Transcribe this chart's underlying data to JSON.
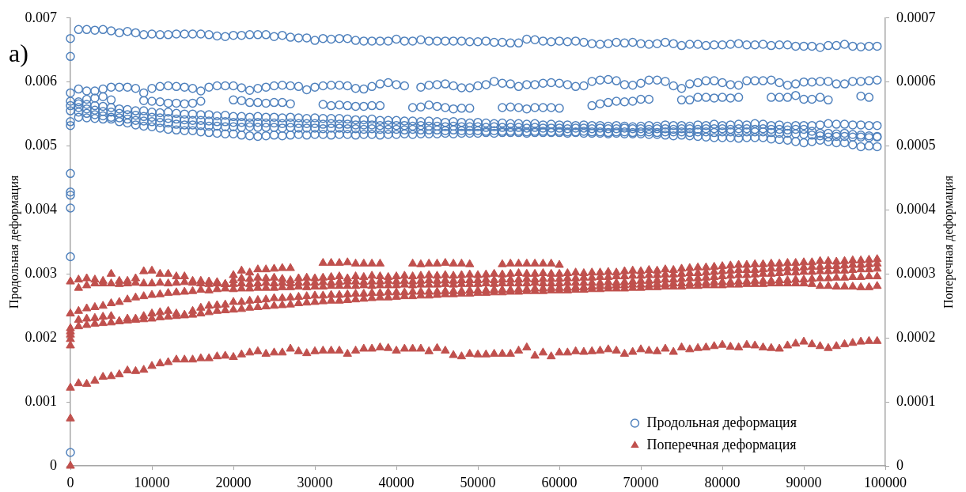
{
  "chart_data": {
    "type": "scatter",
    "ylabel": "Продольная деформация",
    "y2label": "Поперечная деформация",
    "annotations": [
      "a)"
    ],
    "x": [
      0,
      1000,
      2000,
      3000,
      4000,
      5000,
      6000,
      7000,
      8000,
      9000,
      10000,
      11000,
      12000,
      13000,
      14000,
      15000,
      16000,
      17000,
      18000,
      19000,
      20000,
      21000,
      22000,
      23000,
      24000,
      25000,
      26000,
      27000,
      28000,
      29000,
      30000,
      31000,
      32000,
      33000,
      34000,
      35000,
      36000,
      37000,
      38000,
      39000,
      40000,
      41000,
      42000,
      43000,
      44000,
      45000,
      46000,
      47000,
      48000,
      49000,
      50000,
      51000,
      52000,
      53000,
      54000,
      55000,
      56000,
      57000,
      58000,
      59000,
      60000,
      61000,
      62000,
      63000,
      64000,
      65000,
      66000,
      67000,
      68000,
      69000,
      70000,
      71000,
      72000,
      73000,
      74000,
      75000,
      76000,
      77000,
      78000,
      79000,
      80000,
      81000,
      82000,
      83000,
      84000,
      85000,
      86000,
      87000,
      88000,
      89000,
      90000,
      91000,
      92000,
      93000,
      94000,
      95000,
      96000,
      97000,
      98000,
      99000
    ],
    "xlim": [
      0,
      100000
    ],
    "xticks": [
      0,
      10000,
      20000,
      30000,
      40000,
      50000,
      60000,
      70000,
      80000,
      90000,
      100000
    ],
    "ylim": [
      0,
      0.007
    ],
    "yticks": [
      0,
      0.001,
      0.002,
      0.003,
      0.004,
      0.005,
      0.006,
      0.007
    ],
    "y2lim": [
      0,
      0.0007
    ],
    "y2ticks": [
      0,
      0.0001,
      0.0002,
      0.0003,
      0.0004,
      0.0005,
      0.0006,
      0.0007
    ],
    "grid": false,
    "legend": "bottom right",
    "series": [
      {
        "name": "Продольная деформация",
        "color": "#4f81bd",
        "marker": "circle",
        "x": [
          0,
          0,
          0,
          0,
          0,
          0,
          0,
          0,
          0,
          1000,
          2000,
          3000,
          4000,
          5000,
          6000,
          7000,
          8000,
          9000,
          10000,
          11000,
          12000,
          13000,
          14000,
          15000,
          16000,
          17000,
          18000,
          19000,
          20000,
          21000,
          22000,
          23000,
          24000,
          25000,
          26000,
          27000,
          28000,
          29000,
          30000,
          31000,
          32000,
          33000,
          34000,
          35000,
          36000,
          37000,
          38000,
          39000,
          40000,
          41000,
          42000,
          43000,
          44000,
          45000,
          46000,
          47000,
          48000,
          49000,
          50000,
          51000,
          52000,
          53000,
          54000,
          55000,
          56000,
          57000,
          58000,
          59000,
          60000,
          61000,
          62000,
          63000,
          64000,
          65000,
          66000,
          67000,
          68000,
          69000,
          70000,
          71000,
          72000,
          73000,
          74000,
          75000,
          76000,
          77000,
          78000,
          79000,
          80000,
          81000,
          82000,
          83000,
          84000,
          85000,
          86000,
          87000,
          88000,
          89000,
          90000,
          91000,
          92000,
          93000,
          94000,
          95000,
          96000,
          97000,
          98000,
          99000
        ],
        "values": [
          0.00021,
          0.00327,
          0.00403,
          0.00423,
          0.00428,
          0.00457,
          0.00532,
          0.0064,
          0.00668,
          0.00682,
          0.00682,
          0.00681,
          0.00682,
          0.0068,
          0.00677,
          0.00679,
          0.00677,
          0.00674,
          0.00675,
          0.00674,
          0.00674,
          0.00675,
          0.00675,
          0.00675,
          0.00675,
          0.00674,
          0.00672,
          0.00671,
          0.00673,
          0.00673,
          0.00674,
          0.00674,
          0.00674,
          0.00671,
          0.00673,
          0.0067,
          0.00669,
          0.00669,
          0.00665,
          0.00668,
          0.00667,
          0.00668,
          0.00668,
          0.00665,
          0.00664,
          0.00664,
          0.00664,
          0.00664,
          0.00667,
          0.00664,
          0.00664,
          0.00666,
          0.00664,
          0.00664,
          0.00664,
          0.00664,
          0.00664,
          0.00663,
          0.00663,
          0.00664,
          0.00662,
          0.00662,
          0.00661,
          0.00661,
          0.00667,
          0.00666,
          0.00664,
          0.00663,
          0.00664,
          0.00663,
          0.00664,
          0.00662,
          0.0066,
          0.00659,
          0.0066,
          0.00662,
          0.00661,
          0.00662,
          0.0066,
          0.00659,
          0.0066,
          0.00662,
          0.0066,
          0.00657,
          0.00659,
          0.00659,
          0.00657,
          0.00658,
          0.00658,
          0.00659,
          0.0066,
          0.00658,
          0.00658,
          0.00659,
          0.00657,
          0.00658,
          0.00658,
          0.00656,
          0.00656,
          0.00656,
          0.00654,
          0.00657,
          0.00657,
          0.00659,
          0.00656,
          0.00655,
          0.00656,
          0.00656
        ]
      },
      {
        "color": "#4f81bd",
        "marker": "circle",
        "values": [
          0.00583,
          0.00589,
          0.00586,
          0.00586,
          0.00589,
          0.00592,
          0.00592,
          0.00592,
          0.0059,
          0.00583,
          0.0059,
          0.00593,
          0.00594,
          0.00593,
          0.00592,
          0.0059,
          0.00586,
          0.00592,
          0.00594,
          0.00594,
          0.00594,
          0.00591,
          0.00587,
          0.0059,
          0.00592,
          0.00594,
          0.00595,
          0.00594,
          0.00593,
          0.00588,
          0.00592,
          0.00594,
          0.00595,
          0.00595,
          0.00594,
          0.0059,
          0.00589,
          0.00593,
          0.00597,
          0.00599,
          0.00596,
          0.00594,
          null,
          0.00592,
          0.00595,
          0.00596,
          0.00597,
          0.00594,
          0.00591,
          0.00591,
          0.00594,
          0.00596,
          0.00601,
          0.00598,
          0.00597,
          0.00593,
          0.00596,
          0.00596,
          0.00598,
          0.00599,
          0.00598,
          0.00596,
          0.00593,
          0.00594,
          0.00601,
          0.00603,
          0.00604,
          0.00602,
          0.00596,
          0.00595,
          0.00598,
          0.00603,
          0.00603,
          0.00601,
          0.00594,
          0.0059,
          0.00597,
          0.00599,
          0.00602,
          0.00602,
          0.00599,
          0.00596,
          0.00595,
          0.00602,
          0.00602,
          0.00602,
          0.00603,
          0.00599,
          0.00595,
          0.00597,
          0.006,
          0.006,
          0.00601,
          0.00601,
          0.00597,
          0.00597,
          0.00601,
          0.00601,
          0.00602,
          0.00603
        ]
      },
      {
        "color": "#4f81bd",
        "marker": "circle",
        "values": [
          null,
          0.00569,
          0.00573,
          0.00575,
          0.00577,
          0.00572,
          null,
          null,
          null,
          0.00571,
          0.0057,
          0.00569,
          0.00567,
          0.00567,
          0.00566,
          0.00567,
          0.0057,
          null,
          null,
          null,
          0.00572,
          0.00571,
          0.00568,
          0.00568,
          0.00567,
          0.00568,
          0.00568,
          0.00566,
          null,
          null,
          null,
          0.00565,
          0.00563,
          0.00564,
          0.00563,
          0.00562,
          0.00562,
          0.00563,
          0.00563,
          null,
          null,
          null,
          0.0056,
          0.00561,
          0.00564,
          0.00562,
          0.0056,
          0.00558,
          0.00559,
          0.00559,
          null,
          null,
          null,
          0.0056,
          0.00561,
          0.0056,
          0.00558,
          0.0056,
          0.0056,
          0.0056,
          0.00559,
          null,
          null,
          null,
          0.00563,
          0.00566,
          0.00568,
          0.0057,
          0.00569,
          0.0057,
          0.00573,
          0.00573,
          null,
          null,
          null,
          0.00572,
          0.00572,
          0.00576,
          0.00576,
          0.00575,
          0.00576,
          0.00575,
          0.00576,
          null,
          null,
          null,
          0.00576,
          0.00576,
          0.00576,
          0.00579,
          0.00573,
          0.00573,
          0.00576,
          0.00572,
          null,
          null,
          null,
          0.00578,
          0.00576,
          null
        ]
      },
      {
        "color": "#4f81bd",
        "marker": "circle",
        "values": [
          0.0057,
          0.00566,
          0.00565,
          0.00563,
          0.00562,
          0.0056,
          0.00558,
          0.00557,
          0.00555,
          0.00555,
          0.00553,
          0.00552,
          0.00553,
          0.00551,
          0.0055,
          0.0055,
          0.00549,
          0.00549,
          0.00547,
          0.00548,
          0.00546,
          0.00546,
          0.00545,
          0.00546,
          0.00545,
          0.00545,
          0.00544,
          0.00545,
          0.00544,
          0.00543,
          0.00544,
          0.00543,
          0.00543,
          0.00543,
          0.00542,
          0.00541,
          0.00541,
          0.00542,
          0.0054,
          0.0054,
          0.0054,
          0.00539,
          0.00539,
          0.00538,
          0.00539,
          0.00538,
          0.00537,
          0.00538,
          0.00537,
          0.00536,
          0.00537,
          0.00536,
          0.00535,
          0.00536,
          0.00535,
          0.00535,
          0.00534,
          0.00535,
          0.00533,
          0.00534,
          0.00533,
          0.00533,
          0.00532,
          0.00533,
          0.00532,
          0.00532,
          0.00531,
          0.00532,
          0.00531,
          0.0053,
          0.00531,
          0.00532,
          0.00531,
          0.00533,
          0.00532,
          0.00532,
          0.00531,
          0.00533,
          0.00532,
          0.00534,
          0.00532,
          0.00533,
          0.00534,
          0.00533,
          0.00535,
          0.00534,
          0.00532,
          0.00533,
          0.00531,
          0.00532,
          0.00532,
          0.00532,
          0.00533,
          0.00535,
          0.00534,
          0.00534,
          0.00533,
          0.00533,
          0.00532,
          0.00532
        ]
      },
      {
        "color": "#4f81bd",
        "marker": "circle",
        "values": [
          0.00563,
          0.0056,
          0.00558,
          0.00556,
          0.00554,
          0.00553,
          0.00551,
          0.00549,
          0.00548,
          0.00546,
          0.00545,
          0.00544,
          0.00543,
          0.00542,
          0.00541,
          0.0054,
          0.0054,
          0.00539,
          0.00538,
          0.00538,
          0.00537,
          0.00537,
          0.00536,
          0.00537,
          0.00536,
          0.00536,
          0.00535,
          0.00536,
          0.00535,
          0.00535,
          0.00535,
          0.00534,
          0.00535,
          0.00534,
          0.00534,
          0.00533,
          0.00533,
          0.00533,
          0.00532,
          0.00533,
          0.00532,
          0.00532,
          0.00531,
          0.00532,
          0.00531,
          0.00531,
          0.0053,
          0.00531,
          0.0053,
          0.0053,
          0.0053,
          0.00529,
          0.0053,
          0.00529,
          0.00529,
          0.00529,
          0.00528,
          0.00529,
          0.00528,
          0.00528,
          0.00528,
          0.00527,
          0.00528,
          0.00528,
          0.00527,
          0.00528,
          0.00527,
          0.00527,
          0.00528,
          0.00527,
          0.00527,
          0.00526,
          0.00527,
          0.00527,
          0.00526,
          0.00527,
          0.00527,
          0.00526,
          0.00527,
          0.00527,
          0.00527,
          0.00526,
          0.00527,
          0.00527,
          0.00526,
          0.00527,
          0.00526,
          0.00526,
          0.00525,
          0.00526,
          0.00526,
          0.00523,
          0.0052,
          0.0052,
          0.00519,
          0.0052,
          0.00518,
          0.00517,
          0.00516,
          0.00515
        ]
      },
      {
        "color": "#4f81bd",
        "marker": "circle",
        "values": [
          0.00555,
          0.00553,
          0.00551,
          0.00549,
          0.00547,
          0.00545,
          0.00544,
          0.00542,
          0.0054,
          0.00539,
          0.00538,
          0.00537,
          0.00536,
          0.00534,
          0.00533,
          0.00533,
          0.00532,
          0.00531,
          0.00531,
          0.0053,
          0.0053,
          0.00529,
          0.0053,
          0.00529,
          0.00529,
          0.00529,
          0.00528,
          0.00529,
          0.00528,
          0.00528,
          0.00528,
          0.00527,
          0.00528,
          0.00528,
          0.00527,
          0.00527,
          0.00526,
          0.00527,
          0.00526,
          0.00526,
          0.00526,
          0.00525,
          0.00526,
          0.00525,
          0.00525,
          0.00525,
          0.00524,
          0.00525,
          0.00524,
          0.00524,
          0.00524,
          0.00523,
          0.00524,
          0.00523,
          0.00523,
          0.00523,
          0.00522,
          0.00523,
          0.00523,
          0.00522,
          0.00523,
          0.00522,
          0.00522,
          0.00523,
          0.00522,
          0.00522,
          0.00521,
          0.00522,
          0.00522,
          0.00521,
          0.00522,
          0.00522,
          0.00521,
          0.00522,
          0.00522,
          0.00522,
          0.00521,
          0.00522,
          0.00522,
          0.00521,
          0.00522,
          0.00522,
          0.00521,
          0.00522,
          0.00522,
          0.00522,
          0.00521,
          0.0052,
          0.0052,
          0.00519,
          0.00518,
          0.00517,
          0.00516,
          0.00514,
          0.00515,
          0.00515,
          0.00514,
          0.00514,
          0.00513,
          0.00514
        ]
      },
      {
        "color": "#4f81bd",
        "marker": "circle",
        "values": [
          0.00538,
          0.00545,
          0.00544,
          0.00543,
          0.00542,
          0.00542,
          0.00538,
          0.00536,
          0.00533,
          0.00531,
          0.0053,
          0.00528,
          0.00526,
          0.00525,
          0.00524,
          0.00524,
          0.00522,
          0.00521,
          0.0052,
          0.00519,
          0.00519,
          0.00517,
          0.00516,
          0.00515,
          0.00516,
          0.00517,
          0.00516,
          0.00517,
          0.00518,
          0.00517,
          0.00518,
          0.00518,
          0.00517,
          0.00518,
          0.00518,
          0.00517,
          0.00518,
          0.00518,
          0.00517,
          0.00518,
          0.00518,
          0.00519,
          0.00518,
          0.00519,
          0.00519,
          0.00519,
          0.0052,
          0.00519,
          0.0052,
          0.0052,
          0.0052,
          0.00521,
          0.0052,
          0.00521,
          0.00521,
          0.00521,
          0.0052,
          0.00521,
          0.00521,
          0.00521,
          0.00521,
          0.0052,
          0.00521,
          0.0052,
          0.0052,
          0.0052,
          0.00519,
          0.0052,
          0.00519,
          0.00519,
          0.00519,
          0.00518,
          0.00518,
          0.00517,
          0.00516,
          0.00517,
          0.00516,
          0.00515,
          0.00514,
          0.00513,
          0.00513,
          0.00513,
          0.00512,
          0.00513,
          0.00513,
          0.00513,
          0.00511,
          0.0051,
          0.00509,
          0.00507,
          0.00505,
          0.00507,
          0.00509,
          0.00507,
          0.00505,
          0.00505,
          0.00502,
          0.00499,
          0.005,
          0.00499
        ]
      },
      {
        "name": "Поперечная деформация",
        "color": "#c0504d",
        "marker": "triangle",
        "axis": "y2",
        "x": [
          0,
          0,
          0,
          0,
          0,
          0,
          0,
          0,
          1000,
          2000,
          3000,
          4000,
          5000,
          6000,
          7000,
          8000,
          9000,
          10000,
          11000,
          12000,
          13000,
          14000,
          15000,
          16000,
          17000,
          18000,
          19000,
          20000,
          21000,
          22000,
          23000,
          24000,
          25000,
          26000,
          27000,
          28000,
          29000,
          30000,
          31000,
          32000,
          33000,
          34000,
          35000,
          36000,
          37000,
          38000,
          39000,
          40000,
          41000,
          42000,
          43000,
          44000,
          45000,
          46000,
          47000,
          48000,
          49000,
          50000,
          51000,
          52000,
          53000,
          54000,
          55000,
          56000,
          57000,
          58000,
          59000,
          60000,
          61000,
          62000,
          63000,
          64000,
          65000,
          66000,
          67000,
          68000,
          69000,
          70000,
          71000,
          72000,
          73000,
          74000,
          75000,
          76000,
          77000,
          78000,
          79000,
          80000,
          81000,
          82000,
          83000,
          84000,
          85000,
          86000,
          87000,
          88000,
          89000,
          90000,
          91000,
          92000,
          93000,
          94000,
          95000,
          96000,
          97000,
          98000,
          99000
        ],
        "values": [
          0,
          7.4e-05,
          0.000188,
          0.000198,
          0.000205,
          0.00021,
          0.000215,
          0.000288,
          0.000291,
          0.000293,
          0.000291,
          0.000289,
          0.0003,
          0.000289,
          0.000289,
          0.000293,
          0.000304,
          0.000305,
          0.0003,
          0.0003,
          0.000296,
          0.000296,
          0.000289,
          0.000289,
          0.000288,
          0.000287,
          0.000284,
          0.00029,
          0.000293,
          0.000292,
          0.000294,
          0.000293,
          0.000294,
          0.000292,
          0.00029,
          0.000293,
          0.000294,
          0.000293,
          0.000294,
          0.000295,
          0.000296,
          0.000293,
          0.000296,
          0.000295,
          0.000297,
          0.000296,
          0.000295,
          0.000296,
          0.000297,
          0.000296,
          0.000297,
          0.000298,
          0.000297,
          0.000298,
          0.000297,
          0.000298,
          0.000299,
          0.000298,
          0.000299,
          0.0003,
          0.000299,
          0.0003,
          0.000301,
          0.0003,
          0.0003,
          0.000301,
          0.0003,
          0.0003,
          0.000301,
          0.000302,
          0.000301,
          0.000302,
          0.000302,
          0.000303,
          0.000302,
          0.000304,
          0.000305,
          0.000304,
          0.000306,
          0.000305,
          0.000307,
          0.000306,
          0.000308,
          0.000309,
          0.00031,
          0.00031,
          0.000311,
          0.000312,
          0.000313,
          0.000314,
          0.000314,
          0.000315,
          0.000315,
          0.000316,
          0.000316,
          0.000317,
          0.000317,
          0.000318,
          0.000318,
          0.00032,
          0.00032,
          0.000319,
          0.00032,
          0.000321,
          0.000321,
          0.000322,
          0.000323
        ]
      },
      {
        "color": "#c0504d",
        "marker": "triangle",
        "axis": "y2",
        "values": [
          null,
          0.000278,
          0.000282,
          0.000285,
          0.000285,
          0.000285,
          0.000284,
          0.000285,
          0.000286,
          0.000285,
          0.000285,
          0.000286,
          0.000285,
          0.000286,
          0.000287,
          0.000286,
          0.000285,
          0.000284,
          0.000285,
          0.000284,
          0.000284,
          0.000285,
          0.000284,
          0.000285,
          0.000286,
          0.000285,
          0.000286,
          0.000285,
          0.000286,
          0.000286,
          0.000286,
          0.000287,
          0.000286,
          0.000287,
          0.000288,
          0.000288,
          0.000287,
          0.000288,
          0.000288,
          0.000289,
          0.000288,
          0.000289,
          0.000288,
          0.000289,
          0.00029,
          0.000289,
          0.00029,
          0.000289,
          0.00029,
          0.00029,
          0.00029,
          0.000291,
          0.00029,
          0.000291,
          0.000291,
          0.000291,
          0.000292,
          0.000291,
          0.000292,
          0.000292,
          0.000292,
          0.000293,
          0.000293,
          0.000294,
          0.000294,
          0.000295,
          0.000295,
          0.000296,
          0.000296,
          0.000297,
          0.000297,
          0.000298,
          0.000298,
          0.000299,
          0.000299,
          0.0003,
          0.000301,
          0.000301,
          0.000302,
          0.000303,
          0.000304,
          0.000305,
          0.000306,
          0.000306,
          0.000306,
          0.000307,
          0.000308,
          0.000308,
          0.000309,
          0.000309,
          0.00031,
          0.000311,
          0.000311,
          0.000312,
          0.000312,
          0.000313,
          0.000314,
          0.000314,
          0.000315,
          0.000316
        ]
      },
      {
        "color": "#c0504d",
        "marker": "triangle",
        "axis": "y2",
        "values": [
          0.000238,
          0.000242,
          0.000246,
          0.000248,
          0.00025,
          0.000254,
          0.000256,
          0.00026,
          0.000263,
          0.000265,
          0.000267,
          0.000268,
          0.00027,
          0.000271,
          0.000272,
          0.000273,
          0.000275,
          0.000274,
          0.000276,
          0.000277,
          0.000276,
          0.000277,
          0.000277,
          0.000278,
          0.000278,
          0.000278,
          0.000279,
          0.000279,
          0.00028,
          0.000279,
          0.00028,
          0.00028,
          0.000281,
          0.000281,
          0.000281,
          0.000281,
          0.000282,
          0.000281,
          0.000282,
          0.000282,
          0.000282,
          0.000283,
          0.000282,
          0.000283,
          0.000283,
          0.000283,
          0.000284,
          0.000283,
          0.000284,
          0.000284,
          0.000284,
          0.000285,
          0.000284,
          0.000285,
          0.000285,
          0.000285,
          0.000285,
          0.000286,
          0.000285,
          0.000285,
          0.000285,
          0.000286,
          0.000286,
          0.000286,
          0.000286,
          0.000286,
          0.000287,
          0.000286,
          0.000287,
          0.000288,
          0.000289,
          0.000289,
          0.00029,
          0.000291,
          0.000291,
          0.000292,
          0.000293,
          0.000293,
          0.000294,
          0.000295,
          0.000296,
          0.000297,
          0.000298,
          0.000298,
          0.000299,
          0.0003,
          0.0003,
          0.000301,
          0.000302,
          0.000302,
          0.000303,
          0.000303,
          0.000304,
          0.000304,
          0.000305,
          0.000305,
          0.000306,
          0.000307,
          0.000307,
          0.000308
        ]
      },
      {
        "color": "#c0504d",
        "marker": "triangle",
        "axis": "y2",
        "values": [
          null,
          0.000228,
          0.00023,
          0.000231,
          0.000233,
          0.000234,
          0.000226,
          0.00023,
          0.00023,
          0.000234,
          0.000238,
          0.00024,
          0.000242,
          0.000238,
          0.000236,
          0.000242,
          0.000247,
          0.00025,
          0.000251,
          0.000252,
          0.000256,
          0.000256,
          0.000258,
          0.000259,
          0.00026,
          0.000262,
          0.000262,
          0.000263,
          0.000264,
          0.000265,
          0.000266,
          0.000266,
          0.000267,
          0.000267,
          0.000268,
          0.000269,
          0.000269,
          0.00027,
          0.00027,
          0.000271,
          0.000271,
          0.000271,
          0.000272,
          0.000272,
          0.000272,
          0.000272,
          0.000273,
          0.000273,
          0.000273,
          0.000274,
          0.000274,
          0.000274,
          0.000275,
          0.000275,
          0.000275,
          0.000276,
          0.000276,
          0.000277,
          0.000277,
          0.000278,
          0.000278,
          0.000278,
          0.000279,
          0.000279,
          0.00028,
          0.000281,
          0.000281,
          0.000282,
          0.000282,
          0.000283,
          0.000283,
          0.000283,
          0.000284,
          0.000284,
          0.000285,
          0.000285,
          0.000285,
          0.000286,
          0.000286,
          0.000287,
          0.000287,
          0.000287,
          0.000288,
          0.000288,
          0.000289,
          0.000289,
          0.000289,
          0.00029,
          0.00029,
          0.000291,
          0.000291,
          0.000292,
          0.000293,
          0.000293,
          0.000294,
          0.000294,
          0.000295,
          0.000295,
          0.000296,
          0.000296
        ]
      },
      {
        "color": "#c0504d",
        "marker": "triangle",
        "axis": "y2",
        "values": [
          null,
          0.000218,
          0.00022,
          0.000222,
          0.000223,
          0.000224,
          0.000226,
          0.000227,
          0.000228,
          0.000229,
          0.00023,
          0.000232,
          0.000233,
          0.000234,
          0.000235,
          0.000236,
          0.000238,
          0.00024,
          0.000242,
          0.000243,
          0.000244,
          0.000245,
          0.000247,
          0.000248,
          0.000249,
          0.00025,
          0.000251,
          0.000252,
          0.000254,
          0.000255,
          0.000256,
          0.000257,
          0.000258,
          0.000258,
          0.000259,
          0.00026,
          0.000261,
          0.000262,
          0.000263,
          0.000263,
          0.000264,
          0.000265,
          0.000265,
          0.000266,
          0.000266,
          0.000267,
          0.000268,
          0.000268,
          0.000269,
          0.000269,
          0.00027,
          0.00027,
          0.000271,
          0.000271,
          0.000272,
          0.000272,
          0.000273,
          0.000273,
          0.000273,
          0.000274,
          0.000274,
          0.000274,
          0.000275,
          0.000275,
          0.000276,
          0.000276,
          0.000277,
          0.000277,
          0.000277,
          0.000278,
          0.000278,
          0.000279,
          0.000279,
          0.00028,
          0.00028,
          0.00028,
          0.000281,
          0.000281,
          0.000282,
          0.000282,
          0.000282,
          0.000283,
          0.000283,
          0.000284,
          0.000284,
          0.000284,
          0.000285,
          0.000285,
          0.000285,
          0.000285,
          0.000285,
          0.000284,
          0.000281,
          0.000281,
          0.00028,
          0.00028,
          0.00028,
          0.000279,
          0.000279,
          0.000281
        ]
      },
      {
        "color": "#c0504d",
        "marker": "triangle",
        "axis": "y2",
        "values": [
          null,
          null,
          null,
          null,
          null,
          null,
          null,
          null,
          null,
          null,
          null,
          null,
          null,
          null,
          null,
          null,
          null,
          null,
          null,
          null,
          0.000298,
          0.000305,
          0.000302,
          0.000307,
          0.000307,
          0.000308,
          0.000309,
          0.000309,
          null,
          null,
          null,
          0.000317,
          0.000317,
          0.000317,
          0.000318,
          0.000316,
          0.000316,
          0.000316,
          0.000316,
          null,
          null,
          null,
          0.000316,
          0.000315,
          0.000316,
          0.000316,
          0.000317,
          0.000316,
          0.000316,
          0.000315,
          null,
          null,
          null,
          0.000315,
          0.000316,
          0.000316,
          0.000316,
          0.000316,
          0.000316,
          0.000316,
          0.000314,
          null,
          null,
          null,
          null,
          null,
          null,
          null,
          null,
          null,
          null,
          null,
          null,
          null,
          null,
          null,
          null,
          null,
          null,
          null,
          null,
          null,
          null,
          null,
          null,
          null,
          null,
          null,
          null,
          null,
          null,
          null,
          null,
          null,
          null,
          null,
          null,
          null,
          null,
          null
        ]
      },
      {
        "color": "#c0504d",
        "marker": "triangle",
        "axis": "y2",
        "values": [
          0.000122,
          0.000129,
          0.000128,
          0.000133,
          0.000139,
          0.00014,
          0.000143,
          0.000149,
          0.000148,
          0.00015,
          0.000156,
          0.00016,
          0.000162,
          0.000166,
          0.000166,
          0.000166,
          0.000168,
          0.000168,
          0.000171,
          0.000172,
          0.00017,
          0.000174,
          0.000177,
          0.000179,
          0.000175,
          0.000177,
          0.000177,
          0.000183,
          0.000179,
          0.000176,
          0.000179,
          0.00018,
          0.00018,
          0.00018,
          0.000175,
          0.00018,
          0.000183,
          0.000183,
          0.000185,
          0.000184,
          0.00018,
          0.000183,
          0.000183,
          0.000183,
          0.000179,
          0.000184,
          0.00018,
          0.000173,
          0.000171,
          0.000175,
          0.000174,
          0.000174,
          0.000175,
          0.000175,
          0.000175,
          0.00018,
          0.000185,
          0.000172,
          0.000177,
          0.000171,
          0.000177,
          0.000177,
          0.000179,
          0.000178,
          0.000179,
          0.00018,
          0.000182,
          0.00018,
          0.000175,
          0.000178,
          0.000182,
          0.00018,
          0.000179,
          0.000183,
          0.000178,
          0.000185,
          0.000182,
          0.000184,
          0.000185,
          0.000187,
          0.000189,
          0.000186,
          0.000185,
          0.000189,
          0.000188,
          0.000185,
          0.000184,
          0.000183,
          0.000188,
          0.000191,
          0.000194,
          0.00019,
          0.000187,
          0.000184,
          0.000187,
          0.00019,
          0.000192,
          0.000194,
          0.000195,
          0.000195
        ]
      }
    ]
  }
}
